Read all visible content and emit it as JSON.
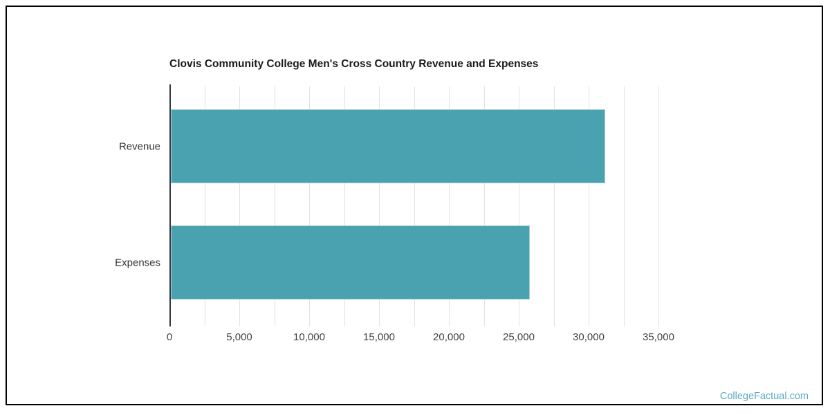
{
  "page": {
    "watermark": "CollegeFactual.com",
    "watermark_color": "#5aa9c4",
    "border_color": "#000000",
    "background_color": "#ffffff"
  },
  "chart_data": {
    "type": "bar",
    "orientation": "horizontal",
    "title": "Clovis Community College Men's Cross Country Revenue and Expenses",
    "categories": [
      "Revenue",
      "Expenses"
    ],
    "values": [
      31100,
      25700
    ],
    "xlabel": "",
    "ylabel": "",
    "xlim": [
      0,
      35000
    ],
    "x_ticks": [
      0,
      5000,
      10000,
      15000,
      20000,
      25000,
      30000,
      35000
    ],
    "x_tick_labels": [
      "0",
      "5,000",
      "10,000",
      "15,000",
      "20,000",
      "25,000",
      "30,000",
      "35,000"
    ],
    "grid": true,
    "grid_interval": 2500,
    "grid_color": "#e2e2e2",
    "axis_color": "#33393e",
    "bar_color": "#4aa1b0",
    "bar_stroke_color": "#a5ced5",
    "legend": false
  }
}
